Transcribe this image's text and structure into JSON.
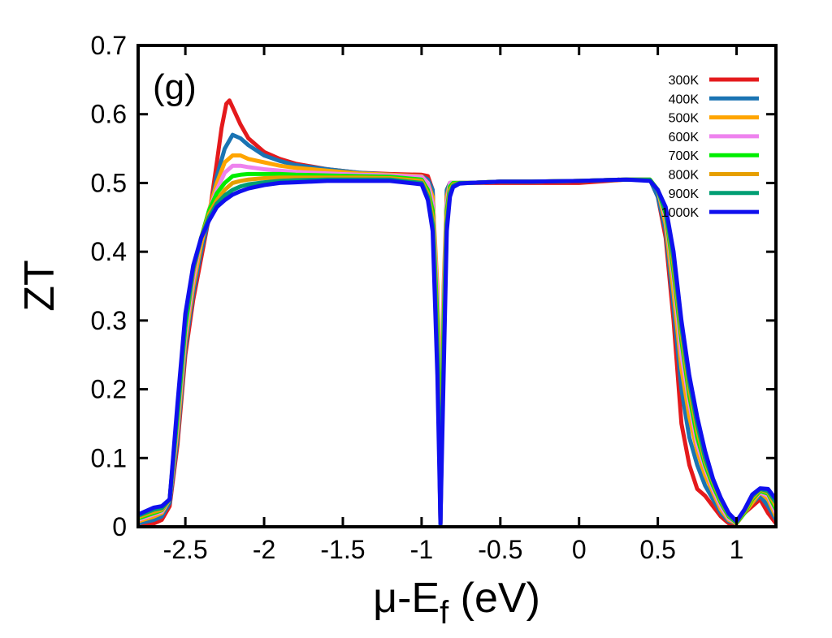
{
  "chart_data": {
    "type": "line",
    "panel_label": "(g)",
    "xlabel_main": "μ-E",
    "xlabel_sub": "f",
    "xlabel_unit": " (eV)",
    "ylabel": "ZT",
    "xlim": [
      -2.8,
      1.25
    ],
    "ylim": [
      0,
      0.7
    ],
    "grid": false,
    "legend_position": "top-right",
    "xticks": [
      {
        "value": -2.5,
        "label": "-2.5"
      },
      {
        "value": -2,
        "label": "-2"
      },
      {
        "value": -1.5,
        "label": "-1.5"
      },
      {
        "value": -1,
        "label": "-1"
      },
      {
        "value": -0.5,
        "label": "-0.5"
      },
      {
        "value": 0,
        "label": "0"
      },
      {
        "value": 0.5,
        "label": "0.5"
      },
      {
        "value": 1,
        "label": "1"
      }
    ],
    "yticks": [
      {
        "value": 0,
        "label": "0"
      },
      {
        "value": 0.1,
        "label": "0.1"
      },
      {
        "value": 0.2,
        "label": "0.2"
      },
      {
        "value": 0.3,
        "label": "0.3"
      },
      {
        "value": 0.4,
        "label": "0.4"
      },
      {
        "value": 0.5,
        "label": "0.5"
      },
      {
        "value": 0.6,
        "label": "0.6"
      },
      {
        "value": 0.7,
        "label": "0.7"
      }
    ],
    "series": [
      {
        "name": "300K",
        "color": "#e41a1c",
        "x": [
          -2.8,
          -2.7,
          -2.65,
          -2.6,
          -2.55,
          -2.5,
          -2.45,
          -2.4,
          -2.35,
          -2.3,
          -2.27,
          -2.24,
          -2.22,
          -2.2,
          -2.15,
          -2.1,
          -2.0,
          -1.9,
          -1.8,
          -1.6,
          -1.4,
          -1.2,
          -1.0,
          -0.96,
          -0.93,
          -0.9,
          -0.88,
          -0.86,
          -0.84,
          -0.82,
          -0.8,
          -0.76,
          -0.7,
          -0.5,
          -0.3,
          0,
          0.3,
          0.45,
          0.5,
          0.55,
          0.6,
          0.65,
          0.7,
          0.75,
          0.8,
          0.85,
          0.9,
          0.95,
          1.0,
          1.05,
          1.1,
          1.15,
          1.2,
          1.25
        ],
        "y": [
          0.0,
          0.005,
          0.01,
          0.03,
          0.12,
          0.25,
          0.33,
          0.39,
          0.45,
          0.53,
          0.58,
          0.615,
          0.62,
          0.61,
          0.585,
          0.565,
          0.545,
          0.535,
          0.528,
          0.52,
          0.515,
          0.513,
          0.512,
          0.51,
          0.49,
          0.3,
          0.0,
          0.3,
          0.49,
          0.5,
          0.5,
          0.5,
          0.5,
          0.5,
          0.5,
          0.5,
          0.505,
          0.505,
          0.48,
          0.42,
          0.3,
          0.15,
          0.09,
          0.055,
          0.045,
          0.03,
          0.015,
          0.005,
          0.005,
          0.02,
          0.03,
          0.04,
          0.02,
          0.005
        ]
      },
      {
        "name": "400K",
        "color": "#1a74b3",
        "x": [
          -2.8,
          -2.7,
          -2.65,
          -2.6,
          -2.55,
          -2.5,
          -2.45,
          -2.4,
          -2.35,
          -2.3,
          -2.25,
          -2.2,
          -2.15,
          -2.1,
          -2.0,
          -1.9,
          -1.8,
          -1.6,
          -1.4,
          -1.2,
          -1.0,
          -0.96,
          -0.93,
          -0.9,
          -0.88,
          -0.86,
          -0.84,
          -0.82,
          -0.8,
          -0.76,
          -0.7,
          -0.5,
          -0.3,
          0,
          0.3,
          0.45,
          0.5,
          0.55,
          0.6,
          0.65,
          0.7,
          0.75,
          0.8,
          0.85,
          0.9,
          0.95,
          1.0,
          1.05,
          1.1,
          1.15,
          1.2,
          1.25
        ],
        "y": [
          0.005,
          0.01,
          0.015,
          0.035,
          0.13,
          0.26,
          0.34,
          0.4,
          0.45,
          0.51,
          0.55,
          0.57,
          0.565,
          0.555,
          0.54,
          0.532,
          0.526,
          0.52,
          0.515,
          0.512,
          0.51,
          0.505,
          0.49,
          0.3,
          0.0,
          0.3,
          0.49,
          0.5,
          0.5,
          0.5,
          0.5,
          0.502,
          0.502,
          0.503,
          0.505,
          0.505,
          0.48,
          0.43,
          0.32,
          0.2,
          0.13,
          0.09,
          0.06,
          0.04,
          0.02,
          0.008,
          0.005,
          0.02,
          0.035,
          0.045,
          0.03,
          0.01
        ]
      },
      {
        "name": "500K",
        "color": "#ffa500",
        "x": [
          -2.8,
          -2.7,
          -2.65,
          -2.6,
          -2.55,
          -2.5,
          -2.45,
          -2.4,
          -2.35,
          -2.3,
          -2.25,
          -2.2,
          -2.15,
          -2.1,
          -2.0,
          -1.9,
          -1.8,
          -1.6,
          -1.4,
          -1.2,
          -1.0,
          -0.96,
          -0.93,
          -0.9,
          -0.88,
          -0.86,
          -0.84,
          -0.82,
          -0.8,
          -0.76,
          -0.7,
          -0.5,
          -0.3,
          0,
          0.3,
          0.45,
          0.5,
          0.55,
          0.6,
          0.65,
          0.7,
          0.75,
          0.8,
          0.85,
          0.9,
          0.95,
          1.0,
          1.05,
          1.1,
          1.15,
          1.2,
          1.25
        ],
        "y": [
          0.008,
          0.015,
          0.02,
          0.04,
          0.14,
          0.27,
          0.35,
          0.41,
          0.46,
          0.5,
          0.53,
          0.54,
          0.54,
          0.535,
          0.53,
          0.525,
          0.522,
          0.518,
          0.514,
          0.512,
          0.51,
          0.5,
          0.48,
          0.35,
          0.14,
          0.35,
          0.48,
          0.5,
          0.5,
          0.5,
          0.5,
          0.502,
          0.502,
          0.503,
          0.505,
          0.505,
          0.49,
          0.44,
          0.34,
          0.23,
          0.16,
          0.11,
          0.075,
          0.05,
          0.025,
          0.01,
          0.005,
          0.02,
          0.035,
          0.05,
          0.04,
          0.015
        ]
      },
      {
        "name": "600K",
        "color": "#ee82ee",
        "x": [
          -2.8,
          -2.7,
          -2.65,
          -2.6,
          -2.55,
          -2.5,
          -2.45,
          -2.4,
          -2.35,
          -2.3,
          -2.25,
          -2.2,
          -2.15,
          -2.1,
          -2.0,
          -1.9,
          -1.8,
          -1.6,
          -1.4,
          -1.2,
          -1.0,
          -0.96,
          -0.93,
          -0.9,
          -0.88,
          -0.86,
          -0.84,
          -0.82,
          -0.8,
          -0.76,
          -0.7,
          -0.5,
          -0.3,
          0,
          0.3,
          0.45,
          0.5,
          0.55,
          0.6,
          0.65,
          0.7,
          0.75,
          0.8,
          0.85,
          0.9,
          0.95,
          1.0,
          1.05,
          1.1,
          1.15,
          1.2,
          1.25
        ],
        "y": [
          0.01,
          0.018,
          0.022,
          0.04,
          0.15,
          0.28,
          0.36,
          0.42,
          0.46,
          0.49,
          0.515,
          0.525,
          0.525,
          0.523,
          0.52,
          0.518,
          0.516,
          0.514,
          0.512,
          0.511,
          0.509,
          0.5,
          0.47,
          0.33,
          0.11,
          0.33,
          0.47,
          0.5,
          0.5,
          0.5,
          0.5,
          0.502,
          0.502,
          0.503,
          0.505,
          0.505,
          0.49,
          0.45,
          0.36,
          0.25,
          0.18,
          0.12,
          0.085,
          0.055,
          0.03,
          0.012,
          0.006,
          0.02,
          0.04,
          0.05,
          0.045,
          0.02
        ]
      },
      {
        "name": "700K",
        "color": "#00ee00",
        "x": [
          -2.8,
          -2.7,
          -2.65,
          -2.6,
          -2.55,
          -2.5,
          -2.45,
          -2.4,
          -2.35,
          -2.3,
          -2.25,
          -2.2,
          -2.15,
          -2.1,
          -2.0,
          -1.9,
          -1.8,
          -1.6,
          -1.4,
          -1.2,
          -1.0,
          -0.96,
          -0.93,
          -0.9,
          -0.88,
          -0.86,
          -0.84,
          -0.82,
          -0.8,
          -0.76,
          -0.7,
          -0.5,
          -0.3,
          0,
          0.3,
          0.45,
          0.5,
          0.55,
          0.6,
          0.65,
          0.7,
          0.75,
          0.8,
          0.85,
          0.9,
          0.95,
          1.0,
          1.05,
          1.1,
          1.15,
          1.2,
          1.25
        ],
        "y": [
          0.012,
          0.02,
          0.024,
          0.04,
          0.16,
          0.29,
          0.37,
          0.42,
          0.46,
          0.485,
          0.5,
          0.51,
          0.512,
          0.513,
          0.513,
          0.513,
          0.512,
          0.511,
          0.51,
          0.509,
          0.505,
          0.49,
          0.46,
          0.3,
          0.08,
          0.3,
          0.46,
          0.495,
          0.5,
          0.5,
          0.5,
          0.502,
          0.502,
          0.503,
          0.505,
          0.505,
          0.49,
          0.455,
          0.37,
          0.27,
          0.19,
          0.13,
          0.09,
          0.06,
          0.035,
          0.015,
          0.006,
          0.02,
          0.04,
          0.052,
          0.048,
          0.025
        ]
      },
      {
        "name": "800K",
        "color": "#e69f00",
        "x": [
          -2.8,
          -2.7,
          -2.65,
          -2.6,
          -2.55,
          -2.5,
          -2.45,
          -2.4,
          -2.35,
          -2.3,
          -2.25,
          -2.2,
          -2.15,
          -2.1,
          -2.0,
          -1.9,
          -1.8,
          -1.6,
          -1.4,
          -1.2,
          -1.0,
          -0.96,
          -0.93,
          -0.9,
          -0.88,
          -0.86,
          -0.84,
          -0.82,
          -0.8,
          -0.76,
          -0.7,
          -0.5,
          -0.3,
          0,
          0.3,
          0.45,
          0.5,
          0.55,
          0.6,
          0.65,
          0.7,
          0.75,
          0.8,
          0.85,
          0.9,
          0.95,
          1.0,
          1.05,
          1.1,
          1.15,
          1.2,
          1.25
        ],
        "y": [
          0.014,
          0.022,
          0.025,
          0.04,
          0.17,
          0.3,
          0.37,
          0.42,
          0.455,
          0.475,
          0.49,
          0.5,
          0.503,
          0.505,
          0.507,
          0.508,
          0.508,
          0.508,
          0.508,
          0.507,
          0.503,
          0.485,
          0.45,
          0.27,
          0.06,
          0.27,
          0.45,
          0.49,
          0.498,
          0.5,
          0.5,
          0.502,
          0.502,
          0.503,
          0.505,
          0.504,
          0.49,
          0.46,
          0.38,
          0.28,
          0.2,
          0.14,
          0.095,
          0.065,
          0.038,
          0.017,
          0.007,
          0.022,
          0.042,
          0.054,
          0.05,
          0.03
        ]
      },
      {
        "name": "900K",
        "color": "#009e73",
        "x": [
          -2.8,
          -2.7,
          -2.65,
          -2.6,
          -2.55,
          -2.5,
          -2.45,
          -2.4,
          -2.35,
          -2.3,
          -2.25,
          -2.2,
          -2.15,
          -2.1,
          -2.0,
          -1.9,
          -1.8,
          -1.6,
          -1.4,
          -1.2,
          -1.0,
          -0.96,
          -0.93,
          -0.9,
          -0.88,
          -0.86,
          -0.84,
          -0.82,
          -0.8,
          -0.76,
          -0.7,
          -0.5,
          -0.3,
          0,
          0.3,
          0.45,
          0.5,
          0.55,
          0.6,
          0.65,
          0.7,
          0.75,
          0.8,
          0.85,
          0.9,
          0.95,
          1.0,
          1.05,
          1.1,
          1.15,
          1.2,
          1.25
        ],
        "y": [
          0.016,
          0.025,
          0.027,
          0.04,
          0.17,
          0.3,
          0.375,
          0.42,
          0.45,
          0.47,
          0.482,
          0.49,
          0.495,
          0.498,
          0.501,
          0.503,
          0.504,
          0.505,
          0.505,
          0.505,
          0.5,
          0.48,
          0.44,
          0.25,
          0.03,
          0.25,
          0.44,
          0.485,
          0.496,
          0.5,
          0.5,
          0.502,
          0.502,
          0.503,
          0.505,
          0.504,
          0.49,
          0.46,
          0.39,
          0.29,
          0.21,
          0.15,
          0.1,
          0.068,
          0.04,
          0.018,
          0.007,
          0.024,
          0.045,
          0.055,
          0.052,
          0.035
        ]
      },
      {
        "name": "1000K",
        "color": "#1010ee",
        "x": [
          -2.8,
          -2.7,
          -2.65,
          -2.6,
          -2.55,
          -2.5,
          -2.45,
          -2.4,
          -2.35,
          -2.3,
          -2.25,
          -2.2,
          -2.15,
          -2.1,
          -2.0,
          -1.9,
          -1.8,
          -1.6,
          -1.4,
          -1.2,
          -1.0,
          -0.96,
          -0.93,
          -0.9,
          -0.88,
          -0.86,
          -0.84,
          -0.82,
          -0.8,
          -0.76,
          -0.7,
          -0.5,
          -0.3,
          0,
          0.3,
          0.45,
          0.5,
          0.55,
          0.6,
          0.65,
          0.7,
          0.75,
          0.8,
          0.85,
          0.9,
          0.95,
          1.0,
          1.05,
          1.1,
          1.15,
          1.2,
          1.25
        ],
        "y": [
          0.018,
          0.028,
          0.03,
          0.04,
          0.18,
          0.31,
          0.38,
          0.42,
          0.445,
          0.465,
          0.475,
          0.483,
          0.488,
          0.492,
          0.497,
          0.5,
          0.501,
          0.503,
          0.503,
          0.503,
          0.498,
          0.475,
          0.43,
          0.22,
          0.005,
          0.22,
          0.43,
          0.48,
          0.494,
          0.499,
          0.5,
          0.502,
          0.502,
          0.503,
          0.505,
          0.503,
          0.49,
          0.465,
          0.4,
          0.3,
          0.22,
          0.16,
          0.11,
          0.07,
          0.042,
          0.02,
          0.008,
          0.025,
          0.047,
          0.056,
          0.055,
          0.04
        ]
      }
    ]
  }
}
